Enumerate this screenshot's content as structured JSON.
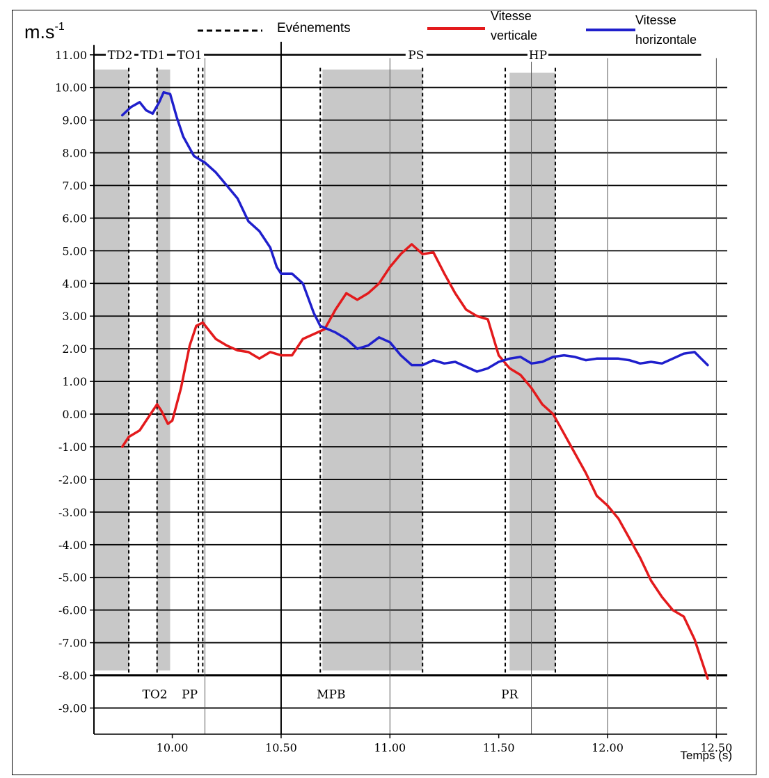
{
  "chart_data": {
    "type": "line",
    "ylabel": "m.s",
    "ylabel_exponent": "-1",
    "xlabel": "Temps (s)",
    "xlim": [
      9.64,
      12.55
    ],
    "ylim": [
      -9.8,
      11.4
    ],
    "grid": true,
    "x_ticks": [
      {
        "value": 10.0,
        "label": "10.00"
      },
      {
        "value": 10.5,
        "label": "10.50"
      },
      {
        "value": 11.0,
        "label": "11.00"
      },
      {
        "value": 11.5,
        "label": "11.50"
      },
      {
        "value": 12.0,
        "label": "12.00"
      },
      {
        "value": 12.5,
        "label": "12.50"
      }
    ],
    "y_ticks": [
      {
        "value": 11,
        "label": "11.00"
      },
      {
        "value": 10,
        "label": "10.00"
      },
      {
        "value": 9,
        "label": "9.00"
      },
      {
        "value": 8,
        "label": "8.00"
      },
      {
        "value": 7,
        "label": "7.00"
      },
      {
        "value": 6,
        "label": "6.00"
      },
      {
        "value": 5,
        "label": "5.00"
      },
      {
        "value": 4,
        "label": "4.00"
      },
      {
        "value": 3,
        "label": "3.00"
      },
      {
        "value": 2,
        "label": "2.00"
      },
      {
        "value": 1,
        "label": "1.00"
      },
      {
        "value": 0,
        "label": "0.00"
      },
      {
        "value": -1,
        "label": "-1.00"
      },
      {
        "value": -2,
        "label": "-2.00"
      },
      {
        "value": -3,
        "label": "-3.00"
      },
      {
        "value": -4,
        "label": "-4.00"
      },
      {
        "value": -5,
        "label": "-5.00"
      },
      {
        "value": -6,
        "label": "-6.00"
      },
      {
        "value": -7,
        "label": "-7.00"
      },
      {
        "value": -8,
        "label": "-8.00"
      },
      {
        "value": -9,
        "label": "-9.00"
      }
    ],
    "minor_vlines": [
      10.15,
      11.0,
      11.65,
      12.0,
      12.5
    ],
    "legend": {
      "placement": "top",
      "items": [
        {
          "label": "Evénements",
          "style": "dashed",
          "color": "#000000"
        },
        {
          "label_lines": [
            "Vitesse",
            "verticale"
          ],
          "color": "#e31a1c"
        },
        {
          "label_lines": [
            "Vitesse",
            "horizontale"
          ],
          "color": "#1f1fcc"
        }
      ]
    },
    "shaded_intervals": [
      {
        "x0": 9.64,
        "x1": 9.8,
        "y0": -7.85,
        "y1": 10.55
      },
      {
        "x0": 9.93,
        "x1": 9.99,
        "y0": -7.85,
        "y1": 10.55
      },
      {
        "x0": 10.69,
        "x1": 11.15,
        "y0": -7.85,
        "y1": 10.55
      },
      {
        "x0": 11.55,
        "x1": 11.76,
        "y0": -7.85,
        "y1": 10.45
      }
    ],
    "event_lines": [
      9.8,
      9.93,
      10.12,
      10.14,
      10.68,
      11.15,
      11.53,
      11.76
    ],
    "top_event_labels": [
      {
        "label": "TD2",
        "x": 9.76
      },
      {
        "label": "TD1",
        "x": 9.91
      },
      {
        "label": "TO1",
        "x": 10.08
      },
      {
        "label": "PS",
        "x": 11.12
      },
      {
        "label": "HP",
        "x": 11.68
      }
    ],
    "phase_line_y": 11.0,
    "bottom_event_labels": [
      {
        "label": "TO2",
        "x": 9.92
      },
      {
        "label": "PP",
        "x": 10.08
      },
      {
        "label": "MPB",
        "x": 10.73
      },
      {
        "label": "PR",
        "x": 11.55
      }
    ],
    "series": [
      {
        "name": "Vitesse verticale",
        "color": "#e31a1c",
        "points": [
          [
            9.77,
            -1.0
          ],
          [
            9.8,
            -0.7
          ],
          [
            9.85,
            -0.5
          ],
          [
            9.9,
            0.0
          ],
          [
            9.93,
            0.3
          ],
          [
            9.95,
            0.1
          ],
          [
            9.98,
            -0.3
          ],
          [
            10.0,
            -0.2
          ],
          [
            10.04,
            0.8
          ],
          [
            10.08,
            2.1
          ],
          [
            10.11,
            2.7
          ],
          [
            10.14,
            2.8
          ],
          [
            10.2,
            2.3
          ],
          [
            10.25,
            2.1
          ],
          [
            10.3,
            1.95
          ],
          [
            10.35,
            1.9
          ],
          [
            10.4,
            1.7
          ],
          [
            10.45,
            1.9
          ],
          [
            10.5,
            1.8
          ],
          [
            10.55,
            1.8
          ],
          [
            10.6,
            2.3
          ],
          [
            10.65,
            2.45
          ],
          [
            10.7,
            2.6
          ],
          [
            10.75,
            3.2
          ],
          [
            10.8,
            3.7
          ],
          [
            10.85,
            3.5
          ],
          [
            10.9,
            3.7
          ],
          [
            10.95,
            4.0
          ],
          [
            11.0,
            4.5
          ],
          [
            11.05,
            4.9
          ],
          [
            11.1,
            5.2
          ],
          [
            11.15,
            4.9
          ],
          [
            11.2,
            4.95
          ],
          [
            11.25,
            4.3
          ],
          [
            11.3,
            3.7
          ],
          [
            11.35,
            3.2
          ],
          [
            11.4,
            3.0
          ],
          [
            11.45,
            2.9
          ],
          [
            11.5,
            1.8
          ],
          [
            11.55,
            1.4
          ],
          [
            11.6,
            1.2
          ],
          [
            11.65,
            0.8
          ],
          [
            11.7,
            0.3
          ],
          [
            11.75,
            0.0
          ],
          [
            11.8,
            -0.6
          ],
          [
            11.85,
            -1.2
          ],
          [
            11.9,
            -1.8
          ],
          [
            11.95,
            -2.5
          ],
          [
            12.0,
            -2.8
          ],
          [
            12.05,
            -3.2
          ],
          [
            12.1,
            -3.8
          ],
          [
            12.15,
            -4.4
          ],
          [
            12.2,
            -5.1
          ],
          [
            12.25,
            -5.6
          ],
          [
            12.3,
            -6.0
          ],
          [
            12.35,
            -6.2
          ],
          [
            12.4,
            -6.9
          ],
          [
            12.43,
            -7.5
          ],
          [
            12.46,
            -8.1
          ]
        ]
      },
      {
        "name": "Vitesse horizontale",
        "color": "#1f1fcc",
        "points": [
          [
            9.77,
            9.15
          ],
          [
            9.81,
            9.4
          ],
          [
            9.85,
            9.55
          ],
          [
            9.88,
            9.3
          ],
          [
            9.91,
            9.2
          ],
          [
            9.94,
            9.55
          ],
          [
            9.96,
            9.85
          ],
          [
            9.99,
            9.8
          ],
          [
            10.02,
            9.1
          ],
          [
            10.05,
            8.5
          ],
          [
            10.1,
            7.9
          ],
          [
            10.15,
            7.7
          ],
          [
            10.2,
            7.4
          ],
          [
            10.25,
            7.0
          ],
          [
            10.3,
            6.6
          ],
          [
            10.35,
            5.9
          ],
          [
            10.4,
            5.6
          ],
          [
            10.45,
            5.1
          ],
          [
            10.48,
            4.5
          ],
          [
            10.5,
            4.3
          ],
          [
            10.55,
            4.3
          ],
          [
            10.6,
            4.0
          ],
          [
            10.65,
            3.1
          ],
          [
            10.68,
            2.7
          ],
          [
            10.75,
            2.5
          ],
          [
            10.8,
            2.3
          ],
          [
            10.85,
            2.0
          ],
          [
            10.9,
            2.1
          ],
          [
            10.95,
            2.35
          ],
          [
            11.0,
            2.2
          ],
          [
            11.05,
            1.8
          ],
          [
            11.1,
            1.5
          ],
          [
            11.15,
            1.5
          ],
          [
            11.2,
            1.65
          ],
          [
            11.25,
            1.55
          ],
          [
            11.3,
            1.6
          ],
          [
            11.35,
            1.45
          ],
          [
            11.4,
            1.3
          ],
          [
            11.45,
            1.4
          ],
          [
            11.5,
            1.6
          ],
          [
            11.55,
            1.7
          ],
          [
            11.6,
            1.75
          ],
          [
            11.65,
            1.55
          ],
          [
            11.7,
            1.6
          ],
          [
            11.75,
            1.75
          ],
          [
            11.8,
            1.8
          ],
          [
            11.85,
            1.75
          ],
          [
            11.9,
            1.65
          ],
          [
            11.95,
            1.7
          ],
          [
            12.0,
            1.7
          ],
          [
            12.05,
            1.7
          ],
          [
            12.1,
            1.65
          ],
          [
            12.15,
            1.55
          ],
          [
            12.2,
            1.6
          ],
          [
            12.25,
            1.55
          ],
          [
            12.3,
            1.7
          ],
          [
            12.35,
            1.85
          ],
          [
            12.4,
            1.9
          ],
          [
            12.43,
            1.7
          ],
          [
            12.46,
            1.5
          ]
        ]
      }
    ]
  }
}
